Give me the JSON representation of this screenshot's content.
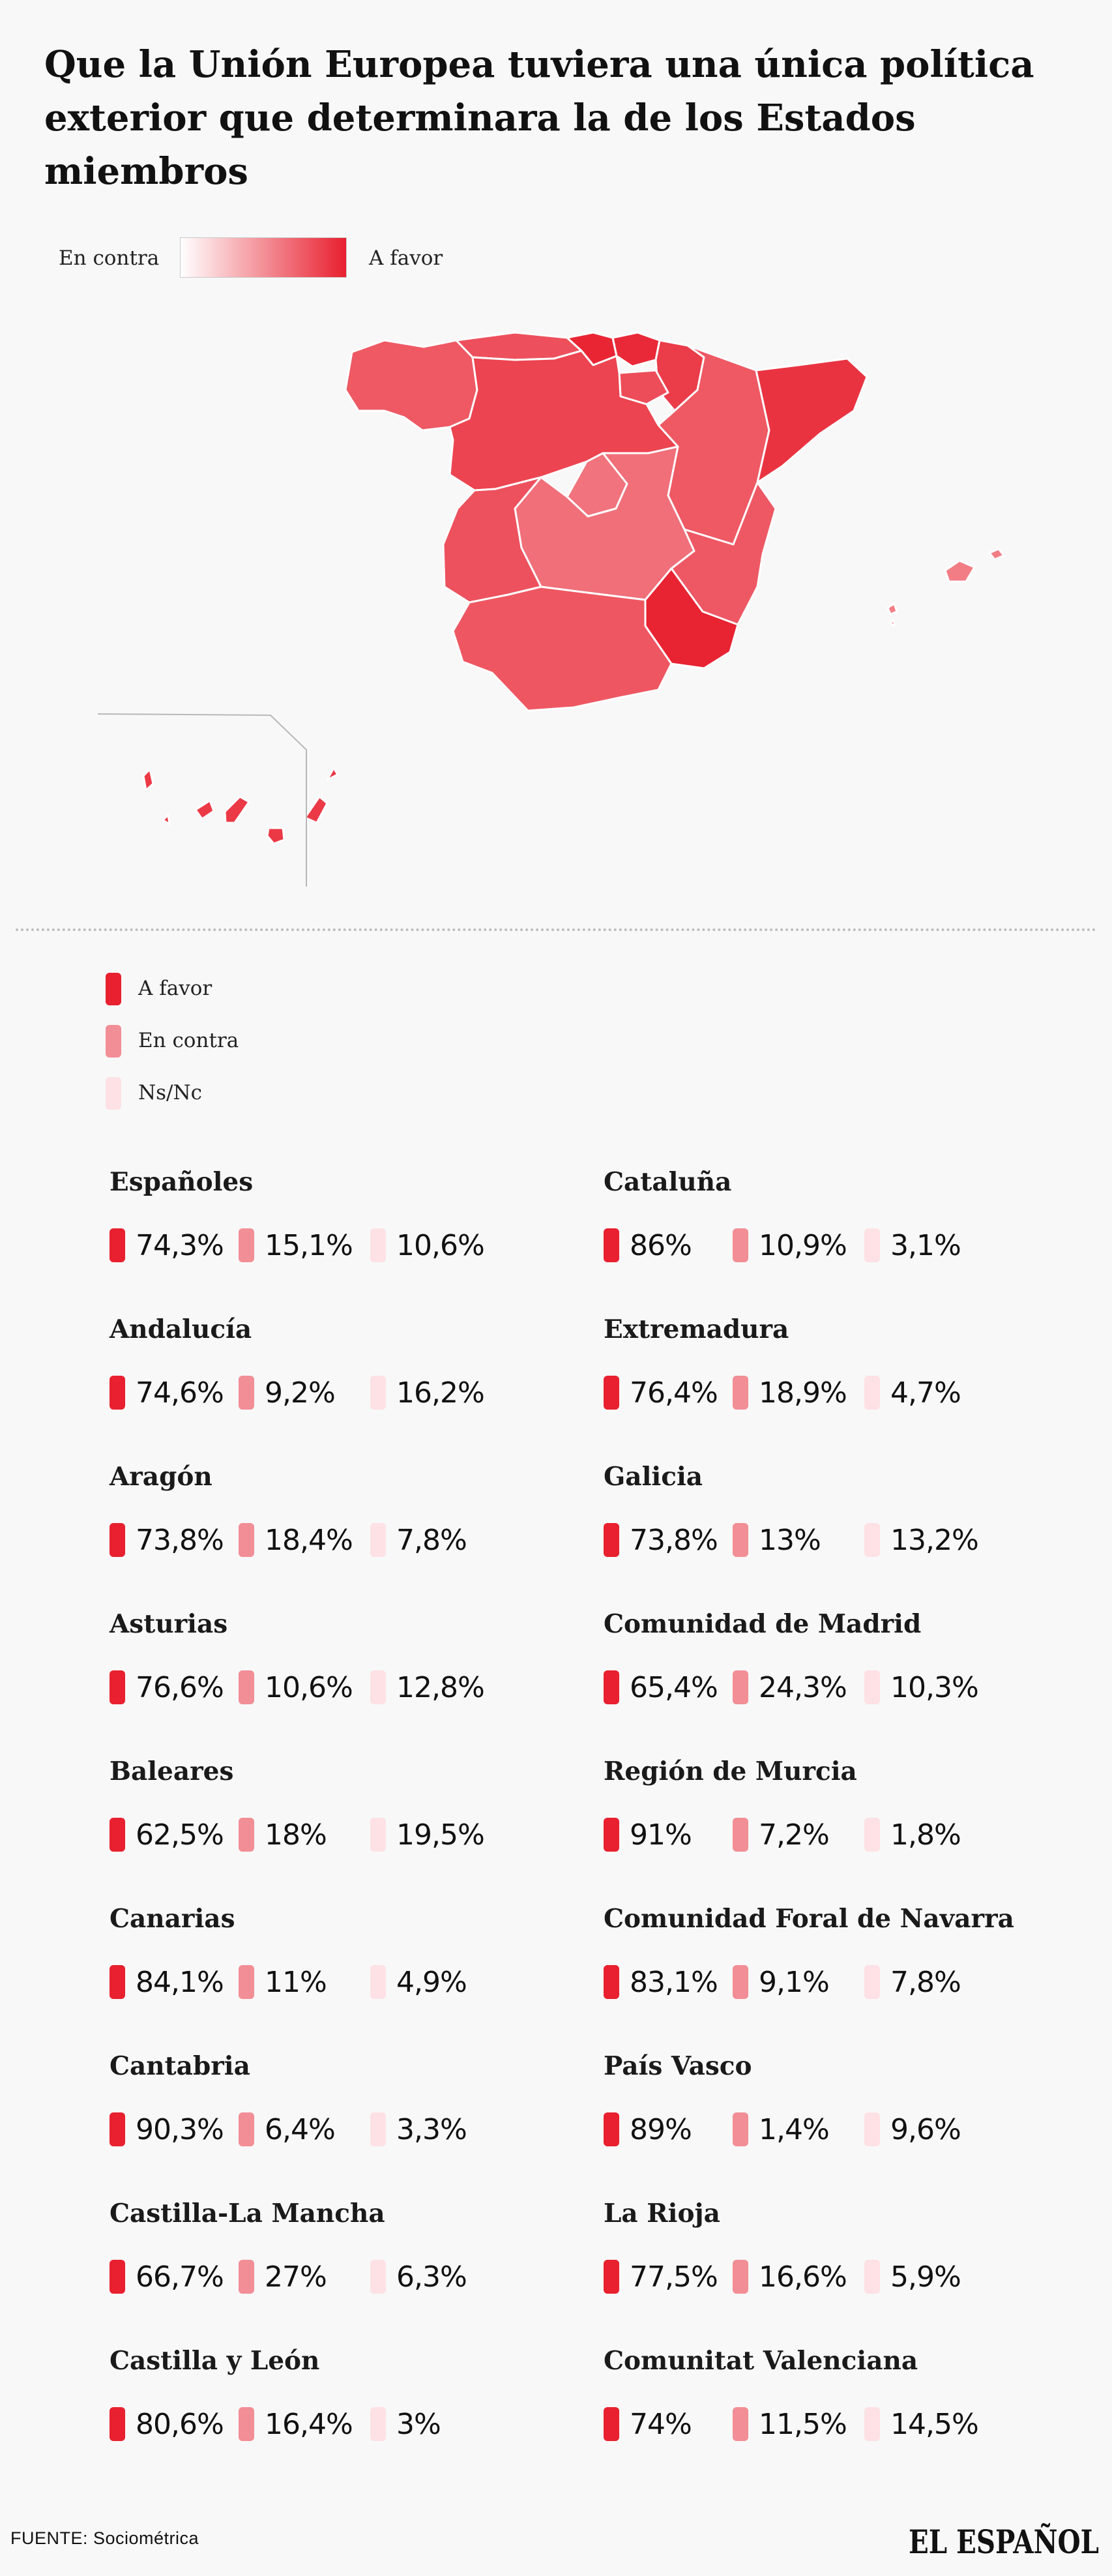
{
  "title": "Que la Unión Europea tuviera una única política exterior que determinara la de los Estados miembros",
  "scale": {
    "low_label": "En contra",
    "high_label": "A favor",
    "color_low": "#ffffff",
    "color_high": "#e8202f"
  },
  "legend": [
    {
      "label": "A favor",
      "color": "#e8202f"
    },
    {
      "label": "En contra",
      "color": "#f28e96"
    },
    {
      "label": "Ns/Nc",
      "color": "#fde1e4"
    }
  ],
  "chart_data": {
    "type": "table",
    "columns": [
      "A favor",
      "En contra",
      "Ns/Nc"
    ],
    "rows": [
      {
        "name": "Españoles",
        "values": [
          "74,3%",
          "15,1%",
          "10,6%"
        ]
      },
      {
        "name": "Cataluña",
        "values": [
          "86%",
          "10,9%",
          "3,1%"
        ]
      },
      {
        "name": "Andalucía",
        "values": [
          "74,6%",
          "9,2%",
          "16,2%"
        ]
      },
      {
        "name": "Extremadura",
        "values": [
          "76,4%",
          "18,9%",
          "4,7%"
        ]
      },
      {
        "name": "Aragón",
        "values": [
          "73,8%",
          "18,4%",
          "7,8%"
        ]
      },
      {
        "name": "Galicia",
        "values": [
          "73,8%",
          "13%",
          "13,2%"
        ]
      },
      {
        "name": "Asturias",
        "values": [
          "76,6%",
          "10,6%",
          "12,8%"
        ]
      },
      {
        "name": "Comunidad de Madrid",
        "values": [
          "65,4%",
          "24,3%",
          "10,3%"
        ]
      },
      {
        "name": "Baleares",
        "values": [
          "62,5%",
          "18%",
          "19,5%"
        ]
      },
      {
        "name": "Región de Murcia",
        "values": [
          "91%",
          "7,2%",
          "1,8%"
        ]
      },
      {
        "name": "Canarias",
        "values": [
          "84,1%",
          "11%",
          "4,9%"
        ]
      },
      {
        "name": "Comunidad Foral de Navarra",
        "values": [
          "83,1%",
          "9,1%",
          "7,8%"
        ]
      },
      {
        "name": "Cantabria",
        "values": [
          "90,3%",
          "6,4%",
          "3,3%"
        ]
      },
      {
        "name": "País Vasco",
        "values": [
          "89%",
          "1,4%",
          "9,6%"
        ]
      },
      {
        "name": "Castilla-La Mancha",
        "values": [
          "66,7%",
          "27%",
          "6,3%"
        ]
      },
      {
        "name": "La Rioja",
        "values": [
          "77,5%",
          "16,6%",
          "5,9%"
        ]
      },
      {
        "name": "Castilla y León",
        "values": [
          "80,6%",
          "16,4%",
          "3%"
        ]
      },
      {
        "name": "Comunitat Valenciana",
        "values": [
          "74%",
          "11,5%",
          "14,5%"
        ]
      }
    ]
  },
  "map_regions": [
    {
      "name": "Galicia",
      "favor": 73.8
    },
    {
      "name": "Asturias",
      "favor": 76.6
    },
    {
      "name": "Cantabria",
      "favor": 90.3
    },
    {
      "name": "País Vasco",
      "favor": 89
    },
    {
      "name": "Comunidad Foral de Navarra",
      "favor": 83.1
    },
    {
      "name": "La Rioja",
      "favor": 77.5
    },
    {
      "name": "Aragón",
      "favor": 73.8
    },
    {
      "name": "Cataluña",
      "favor": 86
    },
    {
      "name": "Castilla y León",
      "favor": 80.6
    },
    {
      "name": "Comunidad de Madrid",
      "favor": 65.4
    },
    {
      "name": "Castilla-La Mancha",
      "favor": 66.7
    },
    {
      "name": "Extremadura",
      "favor": 76.4
    },
    {
      "name": "Comunitat Valenciana",
      "favor": 74
    },
    {
      "name": "Región de Murcia",
      "favor": 91
    },
    {
      "name": "Andalucía",
      "favor": 74.6
    },
    {
      "name": "Baleares",
      "favor": 62.5
    },
    {
      "name": "Canarias",
      "favor": 84.1
    }
  ],
  "source": "FUENTE: Sociométrica",
  "brand": "EL ESPAÑOL"
}
